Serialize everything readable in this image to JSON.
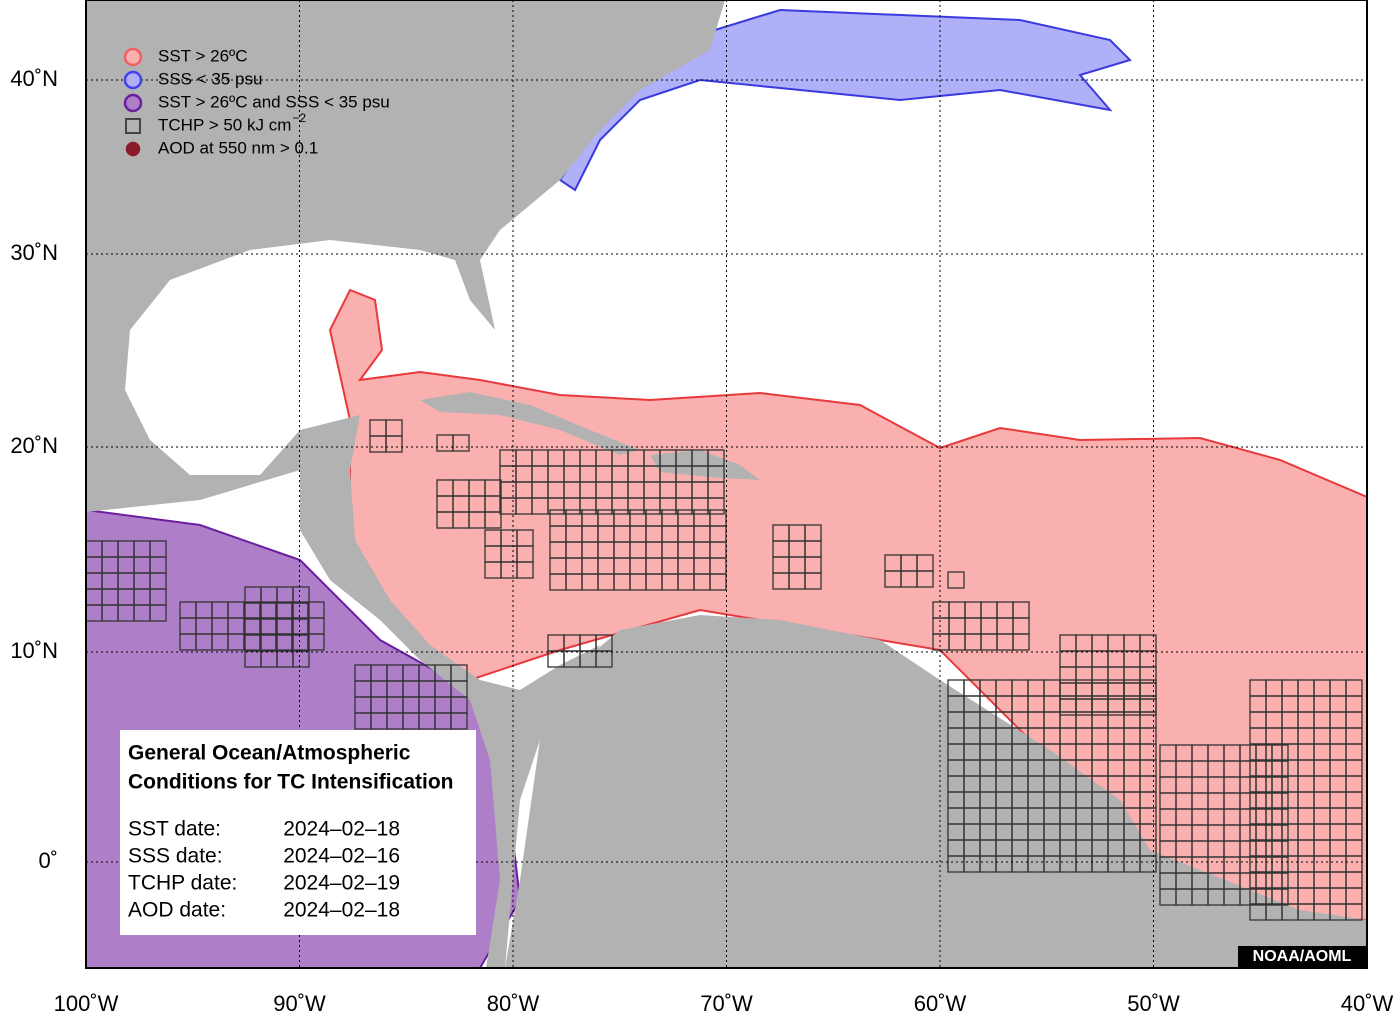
{
  "legend": [
    {
      "label": "SST > 26ºC"
    },
    {
      "label": "SSS < 35 psu"
    },
    {
      "label": "SST > 26ºC and SSS < 35 psu"
    },
    {
      "label": "TCHP > 50 kJ cm",
      "superscript": "−2"
    },
    {
      "label": "AOD at 550 nm > 0.1"
    }
  ],
  "latitude_labels": [
    "40˚N",
    "30˚N",
    "20˚N",
    "10˚N",
    "0˚"
  ],
  "longitude_labels": [
    "100˚W",
    "90˚W",
    "80˚W",
    "70˚W",
    "60˚W",
    "50˚W",
    "40˚W"
  ],
  "info_box": {
    "title": [
      "General Ocean/Atmospheric",
      "Conditions for TC Intensification"
    ],
    "dates": [
      {
        "label": "SST date:",
        "value": "2024–02–18"
      },
      {
        "label": "SSS date:",
        "value": "2024–02–16"
      },
      {
        "label": "TCHP date:",
        "value": "2024–02–19"
      },
      {
        "label": "AOD date:",
        "value": "2024–02–18"
      }
    ]
  },
  "credit": "NOAA/AOML"
}
